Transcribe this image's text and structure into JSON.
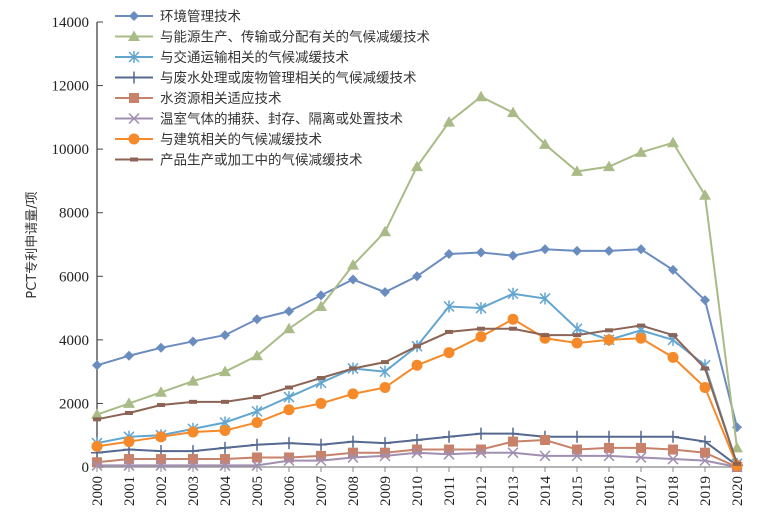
{
  "chart_data": {
    "type": "line",
    "title": "",
    "xlabel": "",
    "ylabel": "PCT专利申请量/项",
    "ylim": [
      0,
      14000
    ],
    "yticks": [
      "0",
      "2000",
      "4000",
      "6000",
      "8000",
      "10000",
      "12000",
      "14000"
    ],
    "x": [
      "2000",
      "2001",
      "2002",
      "2003",
      "2004",
      "2005",
      "2006",
      "2007",
      "2008",
      "2009",
      "2010",
      "2011",
      "2012",
      "2013",
      "2014",
      "2015",
      "2016",
      "2017",
      "2018",
      "2019",
      "2020"
    ],
    "legend_position": "top-left",
    "series": [
      {
        "name": "环境管理技术",
        "color": "#6b8cbf",
        "marker": "diamond",
        "values": [
          3200,
          3500,
          3750,
          3950,
          4150,
          4650,
          4900,
          5400,
          5900,
          5500,
          6000,
          6700,
          6750,
          6650,
          6850,
          6800,
          6800,
          6850,
          6200,
          5250,
          1250
        ]
      },
      {
        "name": "与能源生产、传输或分配有关的气候减缓技术",
        "color": "#a9bb87",
        "marker": "triangle",
        "values": [
          1650,
          2000,
          2350,
          2700,
          3000,
          3500,
          4350,
          5050,
          6350,
          7400,
          9450,
          10850,
          11650,
          11150,
          10150,
          9300,
          9450,
          9900,
          10200,
          8550,
          600
        ]
      },
      {
        "name": "与交通运输相关的气候减缓技术",
        "color": "#62a6d0",
        "marker": "asterisk",
        "values": [
          750,
          950,
          1000,
          1200,
          1400,
          1750,
          2200,
          2650,
          3100,
          3000,
          3800,
          5050,
          5000,
          5450,
          5300,
          4350,
          4000,
          4300,
          4000,
          3200,
          100
        ]
      },
      {
        "name": "与废水处理或废物管理相关的气候减缓技术",
        "color": "#55688f",
        "marker": "plus",
        "values": [
          450,
          550,
          500,
          500,
          600,
          700,
          750,
          700,
          800,
          750,
          850,
          950,
          1050,
          1050,
          950,
          950,
          950,
          950,
          950,
          800,
          50
        ]
      },
      {
        "name": "水资源相关适应技术",
        "color": "#c8826a",
        "marker": "square",
        "values": [
          150,
          250,
          250,
          250,
          250,
          300,
          300,
          350,
          450,
          450,
          550,
          550,
          550,
          800,
          850,
          550,
          600,
          600,
          550,
          450,
          0
        ]
      },
      {
        "name": "温室气体的捕获、封存、隔离或处置技术",
        "color": "#a08fb0",
        "marker": "x",
        "values": [
          50,
          50,
          50,
          50,
          50,
          50,
          200,
          200,
          300,
          350,
          450,
          400,
          450,
          450,
          350,
          350,
          350,
          300,
          250,
          200,
          0
        ]
      },
      {
        "name": "与建筑相关的气候减缓技术",
        "color": "#f58a2a",
        "marker": "circle",
        "values": [
          650,
          800,
          950,
          1100,
          1150,
          1400,
          1800,
          2000,
          2300,
          2500,
          3200,
          3600,
          4100,
          4650,
          4050,
          3900,
          4000,
          4050,
          3450,
          2500,
          50
        ]
      },
      {
        "name": "产品生产或加工中的气候减缓技术",
        "color": "#8c6456",
        "marker": "dash",
        "values": [
          1500,
          1700,
          1950,
          2050,
          2050,
          2200,
          2500,
          2800,
          3100,
          3300,
          3800,
          4250,
          4350,
          4350,
          4150,
          4150,
          4300,
          4450,
          4150,
          3100,
          100
        ]
      }
    ]
  }
}
